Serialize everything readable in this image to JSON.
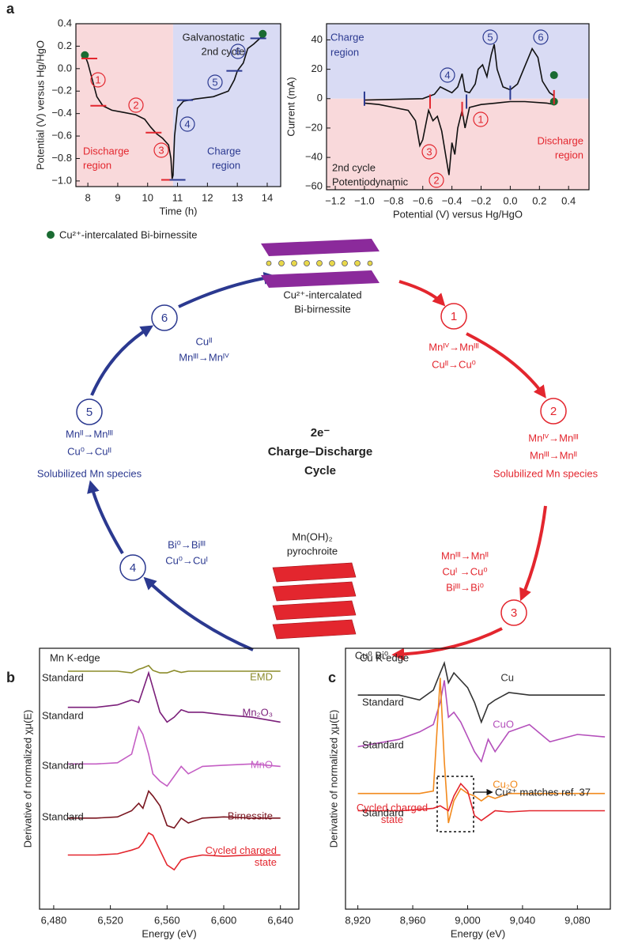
{
  "panel_labels": [
    "a",
    "b",
    "c"
  ],
  "chart_data": [
    {
      "type": "line",
      "xlabel": "Time (h)",
      "ylabel": "Potential (V)  versus Hg/HgO",
      "xlim": [
        7.6,
        14.45
      ],
      "ylim": [
        -1.05,
        0.4
      ],
      "xticks": [
        8,
        9,
        10,
        11,
        12,
        13,
        14
      ],
      "yticks": [
        0.4,
        0.2,
        {
          "value": 0,
          "label": "0.0"
        },
        {
          "value": -0.2,
          "label": "−0.2"
        },
        {
          "value": -0.4,
          "label": "−0.4"
        },
        {
          "value": -0.6,
          "label": "−0.6"
        },
        {
          "value": -0.8,
          "label": "−0.8"
        },
        {
          "value": -1,
          "label": "−1.0"
        }
      ],
      "regions": [
        {
          "x": [
            7.6,
            10.85
          ],
          "color": "#f9d9db"
        },
        {
          "x": [
            10.85,
            14.45
          ],
          "color": "#d9dbf4"
        }
      ],
      "x": [
        7.9,
        8.0,
        8.1,
        8.2,
        8.3,
        8.5,
        8.8,
        9.2,
        9.6,
        9.9,
        10.1,
        10.3,
        10.5,
        10.7,
        10.78,
        10.82,
        10.85,
        10.9,
        11.0,
        11.2,
        11.6,
        12.2,
        12.7,
        12.9,
        13.0,
        13.2,
        13.35,
        13.55,
        13.8,
        13.9
      ],
      "series": [
        {
          "color": "#111111",
          "values": [
            0.12,
            0.05,
            -0.05,
            -0.15,
            -0.25,
            -0.33,
            -0.37,
            -0.39,
            -0.41,
            -0.45,
            -0.52,
            -0.58,
            -0.62,
            -0.68,
            -0.8,
            -0.98,
            -0.95,
            -0.6,
            -0.35,
            -0.29,
            -0.27,
            -0.25,
            -0.2,
            -0.1,
            -0.02,
            0.05,
            0.18,
            0.22,
            0.28,
            0.31
          ]
        }
      ],
      "points": [
        {
          "x": 7.9,
          "y": 0.12,
          "color": "#1a6b32",
          "shape": "dot"
        },
        {
          "x": 13.85,
          "y": 0.31,
          "color": "#1a6b32",
          "shape": "dot"
        },
        {
          "x": 8.05,
          "y": 0.09,
          "color": "#e3262e",
          "shape": "hbar"
        },
        {
          "x": 8.35,
          "y": -0.33,
          "color": "#e3262e",
          "shape": "hbar"
        },
        {
          "x": 10.2,
          "y": -0.57,
          "color": "#e3262e",
          "shape": "hbar"
        },
        {
          "x": 10.72,
          "y": -0.99,
          "color": "#e3262e",
          "shape": "hbar"
        },
        {
          "x": 11.0,
          "y": -0.99,
          "color": "#2b3990",
          "shape": "hbar"
        },
        {
          "x": 11.25,
          "y": -0.28,
          "color": "#2b3990",
          "shape": "hbar"
        },
        {
          "x": 12.9,
          "y": -0.02,
          "color": "#2b3990",
          "shape": "hbar"
        },
        {
          "x": 13.7,
          "y": 0.27,
          "color": "#2b3990",
          "shape": "hbar"
        }
      ],
      "annotations": [
        "Galvanostatic",
        "2nd cycle",
        "Discharge",
        "region",
        "Charge",
        "region",
        "1",
        "2",
        "3",
        "4",
        "5",
        "6"
      ]
    },
    {
      "type": "line",
      "xlabel": "Potential (V)  versus Hg/HgO",
      "ylabel": "Current (mA)",
      "xlim": [
        -1.26,
        0.54
      ],
      "ylim": [
        -62,
        51
      ],
      "xticks": [
        {
          "value": -1.2,
          "label": "−1.2"
        },
        {
          "value": -1,
          "label": "−1.0"
        },
        {
          "value": -0.8,
          "label": "−0.8"
        },
        {
          "value": -0.6,
          "label": "−0.6"
        },
        {
          "value": -0.4,
          "label": "−0.4"
        },
        {
          "value": -0.2,
          "label": "−0.2"
        },
        {
          "value": 0,
          "label": "0.0"
        },
        0.2,
        0.4
      ],
      "yticks": [
        40,
        20,
        0,
        {
          "value": -20,
          "label": "−20"
        },
        {
          "value": -40,
          "label": "−40"
        },
        {
          "value": -60,
          "label": "−60"
        }
      ],
      "regions": [
        {
          "y": [
            0,
            51
          ],
          "color": "#d9dbf4"
        },
        {
          "y": [
            -62,
            0
          ],
          "color": "#f9d9db"
        }
      ],
      "x": [
        -1.0,
        -0.8,
        -0.6,
        -0.52,
        -0.48,
        -0.44,
        -0.4,
        -0.36,
        -0.33,
        -0.31,
        -0.28,
        -0.24,
        -0.22,
        -0.19,
        -0.16,
        -0.13,
        -0.11,
        -0.09,
        -0.05,
        0.0,
        0.05,
        0.1,
        0.15,
        0.19,
        0.22,
        0.27,
        0.3,
        0.3,
        0.25,
        0.1,
        0,
        -0.1,
        -0.2,
        -0.28,
        -0.31,
        -0.33,
        -0.36,
        -0.38,
        -0.4,
        -0.42,
        -0.44,
        -0.47,
        -0.5,
        -0.53,
        -0.56,
        -0.6,
        -0.62,
        -0.65,
        -0.7,
        -0.8,
        -0.9,
        -1.0
      ],
      "series": [
        {
          "color": "#111111",
          "values": [
            -1,
            -0.5,
            0,
            3,
            8,
            6,
            4,
            8,
            17,
            5,
            4,
            10,
            20,
            23,
            15,
            30,
            37,
            20,
            8,
            6,
            10,
            22,
            34,
            28,
            12,
            4,
            2,
            -4,
            -3,
            -2,
            -2,
            -3,
            -4,
            -6,
            -20,
            -8,
            -20,
            -38,
            -30,
            -52,
            -40,
            -22,
            -12,
            -15,
            -8,
            -28,
            -32,
            -15,
            -8,
            -6,
            -4,
            -3
          ]
        }
      ],
      "points": [
        {
          "x": 0.3,
          "y": 16,
          "color": "#1a6b32",
          "shape": "dot"
        },
        {
          "x": 0.3,
          "y": -2,
          "color": "#1a6b32",
          "shape": "dot"
        },
        {
          "x": -1.0,
          "y": 0,
          "color": "#2b3990",
          "shape": "vbar"
        },
        {
          "x": -0.55,
          "y": -2,
          "color": "#e3262e",
          "shape": "vbar"
        },
        {
          "x": -0.3,
          "y": -2,
          "color": "#2b3990",
          "shape": "vbar"
        },
        {
          "x": -0.33,
          "y": -7,
          "color": "#e3262e",
          "shape": "vbar"
        },
        {
          "x": 0.0,
          "y": 4,
          "color": "#2b3990",
          "shape": "vbar"
        },
        {
          "x": 0.3,
          "y": 1,
          "color": "#e3262e",
          "shape": "vbar"
        }
      ],
      "annotations": [
        "Charge",
        "region",
        "2nd cycle",
        "Potentiodynamic",
        "Discharge",
        "region",
        "1",
        "2",
        "3",
        "4",
        "5",
        "6"
      ]
    },
    {
      "type": "line",
      "xlabel": "Energy (eV)",
      "ylabel": "Derivative of normalized χμ(E)",
      "xlim": [
        6470,
        6653
      ],
      "ylim": [
        0,
        10.6
      ],
      "xticks": [
        {
          "value": 6480,
          "label": "6,480"
        },
        {
          "value": 6520,
          "label": "6,520"
        },
        {
          "value": 6560,
          "label": "6,560"
        },
        {
          "value": 6600,
          "label": "6,600"
        },
        {
          "value": 6640,
          "label": "6,640"
        }
      ],
      "x": [
        6490,
        6510,
        6525,
        6535,
        6540,
        6543,
        6547,
        6550,
        6555,
        6560,
        6565,
        6570,
        6575,
        6585,
        6600,
        6620,
        6640
      ],
      "series": [
        {
          "name": "EMD",
          "color": "#8b8b2a",
          "values": [
            9.67,
            9.67,
            9.67,
            9.6,
            9.75,
            9.8,
            9.9,
            9.7,
            9.6,
            9.6,
            9.7,
            9.62,
            9.67,
            9.67,
            9.67,
            9.67,
            9.67
          ]
        },
        {
          "name": "Mn₂O₃",
          "color": "#7b1f7a",
          "values": [
            8.2,
            8.2,
            8.3,
            8.5,
            8.4,
            8.9,
            9.6,
            9.0,
            8.0,
            7.6,
            7.8,
            8.1,
            8.0,
            8.0,
            7.9,
            7.8,
            7.6
          ]
        },
        {
          "name": "MnO",
          "color": "#c45ec4",
          "values": [
            5.9,
            5.9,
            5.95,
            6.3,
            7.4,
            7.1,
            6.3,
            5.5,
            5.2,
            5.0,
            5.4,
            5.8,
            5.5,
            5.8,
            5.85,
            5.9,
            5.8
          ]
        },
        {
          "name": "Birnessite",
          "color": "#7a1620",
          "values": [
            3.7,
            3.7,
            3.75,
            4.0,
            4.3,
            4.1,
            4.8,
            4.6,
            4.2,
            3.4,
            3.3,
            3.7,
            3.5,
            3.7,
            3.75,
            3.7,
            3.7
          ]
        },
        {
          "name": "Cycled charged state",
          "color": "#e3262e",
          "values": [
            2.2,
            2.2,
            2.25,
            2.4,
            2.5,
            2.7,
            3.1,
            3.0,
            2.4,
            1.8,
            1.6,
            2.0,
            2.1,
            2.2,
            2.15,
            2.2,
            2.2
          ]
        }
      ],
      "annotations": [
        "Mn K-edge",
        "Standard",
        "Standard",
        "Standard",
        "Standard"
      ]
    },
    {
      "type": "line",
      "xlabel": "Energy (eV)",
      "ylabel": "Derivative of normalized χμ(E)",
      "xlim": [
        8911,
        9104
      ],
      "ylim": [
        0,
        10.6
      ],
      "xticks": [
        {
          "value": 8920,
          "label": "8,920"
        },
        {
          "value": 8960,
          "label": "8,960"
        },
        {
          "value": 9000,
          "label": "9,000"
        },
        {
          "value": 9040,
          "label": "9,040"
        },
        {
          "value": 9080,
          "label": "9,080"
        }
      ],
      "x": [
        8920,
        8950,
        8965,
        8975,
        8980,
        8983,
        8986,
        8990,
        8995,
        9000,
        9005,
        9010,
        9015,
        9020,
        9030,
        9045,
        9060,
        9080,
        9100
      ],
      "series": [
        {
          "name": "Cu",
          "color": "#333333",
          "values": [
            8.7,
            8.7,
            8.5,
            8.9,
            9.6,
            10.0,
            9.2,
            9.6,
            9.3,
            9.0,
            8.4,
            7.6,
            8.3,
            8.5,
            8.8,
            8.7,
            8.7,
            8.7,
            8.7
          ]
        },
        {
          "name": "CuO",
          "color": "#b44fbb",
          "values": [
            6.6,
            6.9,
            7.2,
            7.5,
            8.4,
            9.3,
            7.8,
            8.0,
            7.6,
            7.0,
            6.4,
            6.0,
            6.9,
            6.4,
            7.2,
            7.5,
            6.8,
            7.1,
            7.0
          ]
        },
        {
          "name": "Cu₂O",
          "color": "#f28a1d",
          "values": [
            4.7,
            4.7,
            4.7,
            4.8,
            9.4,
            6.0,
            3.5,
            4.4,
            4.9,
            4.7,
            4.6,
            4.4,
            4.6,
            4.5,
            4.7,
            4.7,
            4.7,
            4.7,
            4.7
          ]
        },
        {
          "name": "Cycled charged state",
          "color": "#e3262e",
          "values": [
            4.0,
            4.0,
            4.05,
            4.1,
            4.2,
            4.1,
            4.0,
            4.6,
            5.1,
            4.8,
            3.8,
            3.6,
            3.8,
            4.0,
            3.95,
            4.0,
            4.0,
            4.0,
            4.0
          ]
        }
      ],
      "annotations": [
        "Cu K-edge",
        "Standard",
        "Standard",
        "Standard",
        "Cu²⁺ matches ref. 37"
      ]
    }
  ],
  "diagram": {
    "legend": "Cu²⁺-intercalated Bi-birnessite",
    "top_species": [
      "Cu²⁺-intercalated",
      "Bi-birnessite"
    ],
    "center": [
      "2e⁻",
      "Charge–Discharge",
      "Cycle"
    ],
    "nodes": [
      {
        "number": "1",
        "lines": [
          "Mnᴵⱽ→Mnᴵᴵᴵ",
          "Cuᴵᴵ→Cu⁰"
        ]
      },
      {
        "number": "2",
        "lines": [
          "Mnᴵⱽ→Mnᴵᴵᴵ",
          "Mnᴵᴵᴵ→Mnᴵᴵ",
          "Solubilized Mn species"
        ]
      },
      {
        "number": "3",
        "lines": [
          "Mnᴵᴵᴵ→Mnᴵᴵ",
          "Cuᴵ →Cu⁰",
          "Biᴵᴵᴵ→Bi⁰"
        ]
      },
      {
        "number": "4",
        "lines": [
          "Bi⁰→Biᴵᴵᴵ",
          "Cu⁰→Cuᴵ"
        ]
      },
      {
        "number": "5",
        "lines": [
          "Mnᴵᴵ→Mnᴵᴵᴵ",
          "Cu⁰→Cuᴵᴵ",
          "Solubilized Mn species"
        ]
      },
      {
        "number": "6",
        "lines": [
          "Cuᴵᴵ",
          "Mnᴵᴵᴵ→Mnᴵⱽ"
        ]
      }
    ],
    "bottom_species": [
      "Mn(OH)₂",
      "pyrochroite"
    ],
    "product": "Cu⁰ Bi⁰"
  }
}
